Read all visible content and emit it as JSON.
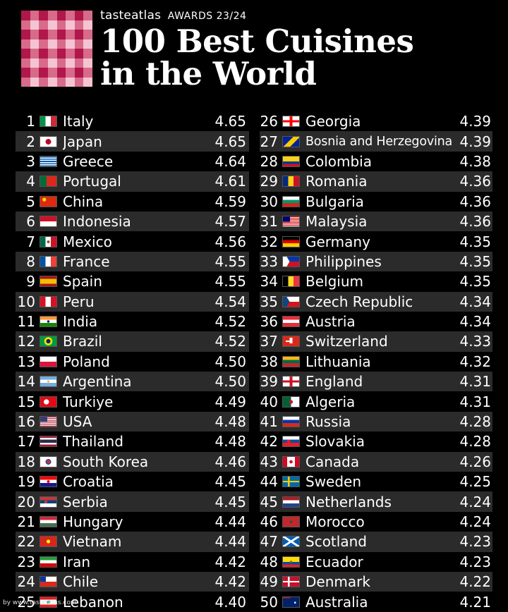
{
  "header": {
    "brand_name": "tasteatlas",
    "awards": "AWARDS 23/24",
    "title_line1": "100 Best Cuisines",
    "title_line2": "in the World"
  },
  "logo_colors": {
    "dark": "#b0174a",
    "mid": "#d86a8a",
    "light": "#f4c4d2"
  },
  "left_column": [
    {
      "rank": "1",
      "country": "Italy",
      "score": "4.65",
      "flag": "italy-flag"
    },
    {
      "rank": "2",
      "country": "Japan",
      "score": "4.65",
      "flag": "japan-flag"
    },
    {
      "rank": "3",
      "country": "Greece",
      "score": "4.64",
      "flag": "greece-flag"
    },
    {
      "rank": "4",
      "country": "Portugal",
      "score": "4.61",
      "flag": "portugal-flag"
    },
    {
      "rank": "5",
      "country": "China",
      "score": "4.59",
      "flag": "china-flag"
    },
    {
      "rank": "6",
      "country": "Indonesia",
      "score": "4.57",
      "flag": "indonesia-flag"
    },
    {
      "rank": "7",
      "country": "Mexico",
      "score": "4.56",
      "flag": "mexico-flag"
    },
    {
      "rank": "8",
      "country": "France",
      "score": "4.55",
      "flag": "france-flag"
    },
    {
      "rank": "9",
      "country": "Spain",
      "score": "4.55",
      "flag": "spain-flag"
    },
    {
      "rank": "10",
      "country": "Peru",
      "score": "4.54",
      "flag": "peru-flag"
    },
    {
      "rank": "11",
      "country": "India",
      "score": "4.52",
      "flag": "india-flag"
    },
    {
      "rank": "12",
      "country": "Brazil",
      "score": "4.52",
      "flag": "brazil-flag"
    },
    {
      "rank": "13",
      "country": "Poland",
      "score": "4.50",
      "flag": "poland-flag"
    },
    {
      "rank": "14",
      "country": "Argentina",
      "score": "4.50",
      "flag": "argentina-flag"
    },
    {
      "rank": "15",
      "country": "Turkiye",
      "score": "4.49",
      "flag": "turkiye-flag"
    },
    {
      "rank": "16",
      "country": "USA",
      "score": "4.48",
      "flag": "usa-flag"
    },
    {
      "rank": "17",
      "country": "Thailand",
      "score": "4.48",
      "flag": "thailand-flag"
    },
    {
      "rank": "18",
      "country": "South Korea",
      "score": "4.46",
      "flag": "south-korea-flag"
    },
    {
      "rank": "19",
      "country": "Croatia",
      "score": "4.45",
      "flag": "croatia-flag"
    },
    {
      "rank": "20",
      "country": "Serbia",
      "score": "4.45",
      "flag": "serbia-flag"
    },
    {
      "rank": "21",
      "country": "Hungary",
      "score": "4.44",
      "flag": "hungary-flag"
    },
    {
      "rank": "22",
      "country": "Vietnam",
      "score": "4.44",
      "flag": "vietnam-flag"
    },
    {
      "rank": "23",
      "country": "Iran",
      "score": "4.42",
      "flag": "iran-flag"
    },
    {
      "rank": "24",
      "country": "Chile",
      "score": "4.42",
      "flag": "chile-flag"
    },
    {
      "rank": "25",
      "country": "Lebanon",
      "score": "4.40",
      "flag": "lebanon-flag"
    }
  ],
  "right_column": [
    {
      "rank": "26",
      "country": "Georgia",
      "score": "4.39",
      "flag": "georgia-flag"
    },
    {
      "rank": "27",
      "country": "Bosnia and Herzegovina",
      "score": "4.39",
      "flag": "bosnia-flag"
    },
    {
      "rank": "28",
      "country": "Colombia",
      "score": "4.38",
      "flag": "colombia-flag"
    },
    {
      "rank": "29",
      "country": "Romania",
      "score": "4.36",
      "flag": "romania-flag"
    },
    {
      "rank": "30",
      "country": "Bulgaria",
      "score": "4.36",
      "flag": "bulgaria-flag"
    },
    {
      "rank": "31",
      "country": "Malaysia",
      "score": "4.36",
      "flag": "malaysia-flag"
    },
    {
      "rank": "32",
      "country": "Germany",
      "score": "4.35",
      "flag": "germany-flag"
    },
    {
      "rank": "33",
      "country": "Philippines",
      "score": "4.35",
      "flag": "philippines-flag"
    },
    {
      "rank": "34",
      "country": "Belgium",
      "score": "4.35",
      "flag": "belgium-flag"
    },
    {
      "rank": "35",
      "country": "Czech Republic",
      "score": "4.34",
      "flag": "czech-flag"
    },
    {
      "rank": "36",
      "country": "Austria",
      "score": "4.34",
      "flag": "austria-flag"
    },
    {
      "rank": "37",
      "country": "Switzerland",
      "score": "4.33",
      "flag": "switzerland-flag"
    },
    {
      "rank": "38",
      "country": "Lithuania",
      "score": "4.32",
      "flag": "lithuania-flag"
    },
    {
      "rank": "39",
      "country": "England",
      "score": "4.31",
      "flag": "england-flag"
    },
    {
      "rank": "40",
      "country": "Algeria",
      "score": "4.31",
      "flag": "algeria-flag"
    },
    {
      "rank": "41",
      "country": "Russia",
      "score": "4.28",
      "flag": "russia-flag"
    },
    {
      "rank": "42",
      "country": "Slovakia",
      "score": "4.28",
      "flag": "slovakia-flag"
    },
    {
      "rank": "43",
      "country": "Canada",
      "score": "4.26",
      "flag": "canada-flag"
    },
    {
      "rank": "44",
      "country": "Sweden",
      "score": "4.25",
      "flag": "sweden-flag"
    },
    {
      "rank": "45",
      "country": "Netherlands",
      "score": "4.24",
      "flag": "netherlands-flag"
    },
    {
      "rank": "46",
      "country": "Morocco",
      "score": "4.24",
      "flag": "morocco-flag"
    },
    {
      "rank": "47",
      "country": "Scotland",
      "score": "4.23",
      "flag": "scotland-flag"
    },
    {
      "rank": "48",
      "country": "Ecuador",
      "score": "4.23",
      "flag": "ecuador-flag"
    },
    {
      "rank": "49",
      "country": "Denmark",
      "score": "4.22",
      "flag": "denmark-flag"
    },
    {
      "rank": "50",
      "country": "Australia",
      "score": "4.21",
      "flag": "australia-flag"
    }
  ],
  "footer": {
    "source": "by www.tasteatlas.com"
  }
}
